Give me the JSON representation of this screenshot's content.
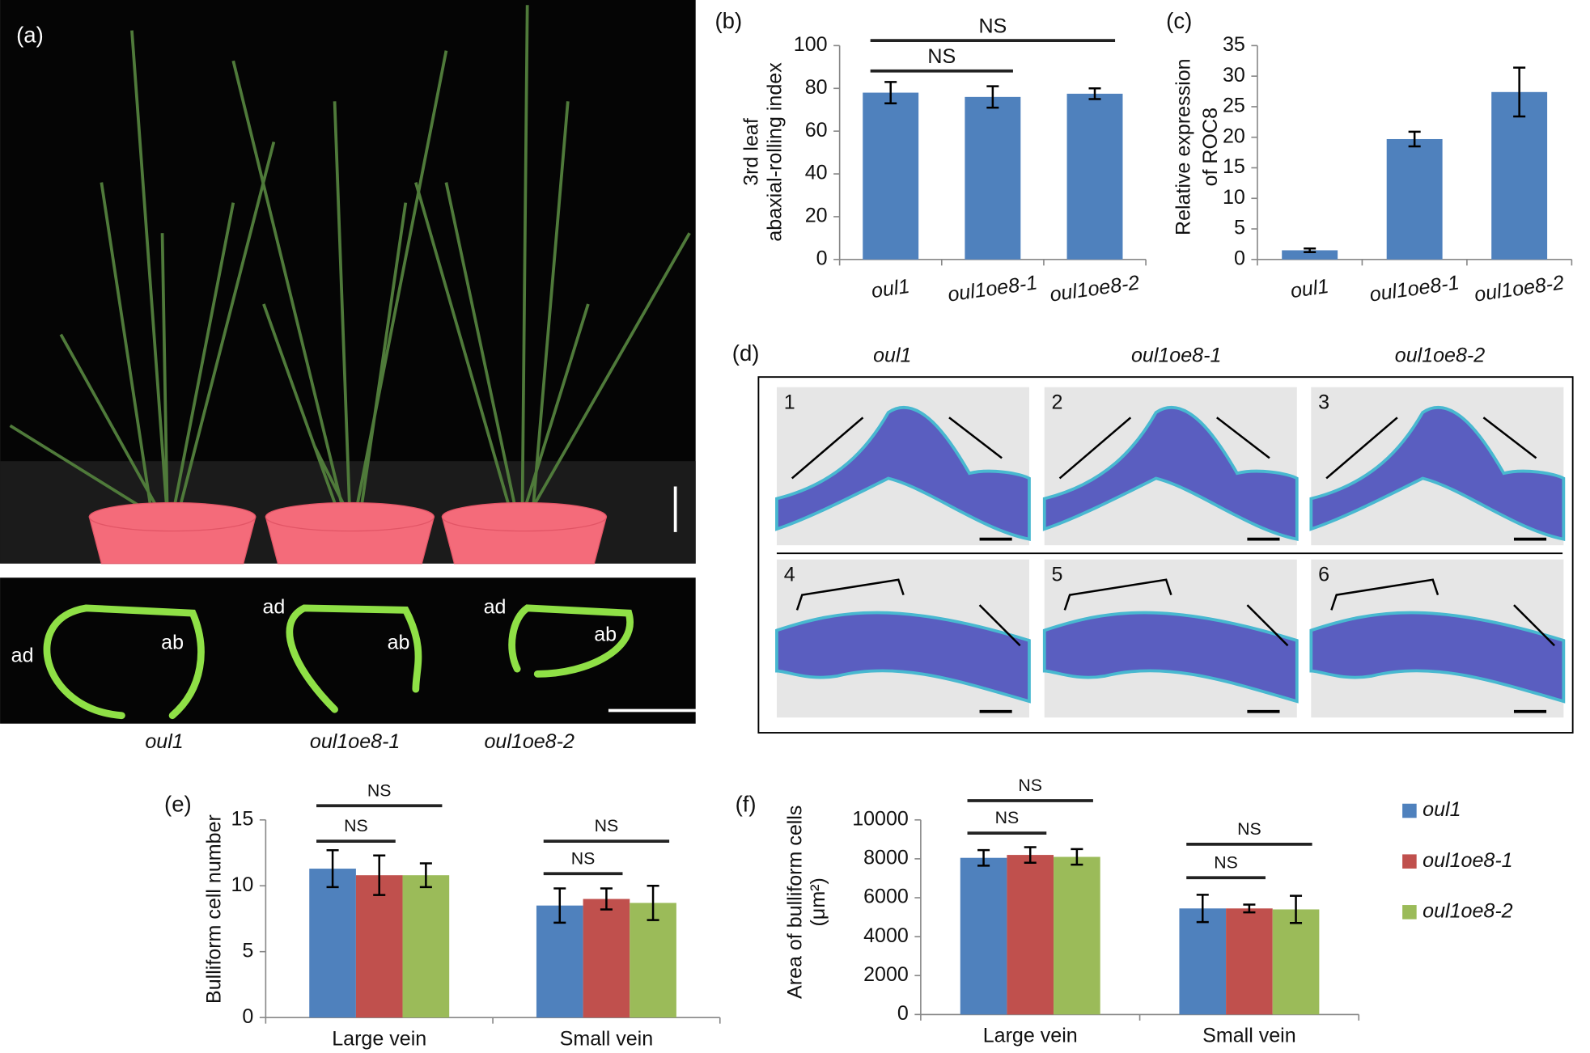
{
  "panel_a": {
    "label": "(a)",
    "section_labels": [
      "ad",
      "ab",
      "ad",
      "ab",
      "ad",
      "ab"
    ],
    "genotypes": [
      "oul1",
      "oul1oe8-1",
      "oul1oe8-2"
    ]
  },
  "panel_d": {
    "label": "(d)",
    "columns": [
      "oul1",
      "oul1oe8-1",
      "oul1oe8-2"
    ],
    "images": [
      "1",
      "2",
      "3",
      "4",
      "5",
      "6"
    ]
  },
  "chart_data": [
    {
      "type": "bar",
      "panel_label": "(b)",
      "y_label": [
        "3rd leaf",
        "abaxial-rolling index"
      ],
      "categories": [
        "oul1",
        "oul1oe8-1",
        "oul1oe8-2"
      ],
      "values": [
        78,
        76,
        77.5
      ],
      "errors": [
        5,
        5,
        2.5
      ],
      "color": "#4f81bd",
      "ylim": [
        0,
        100
      ],
      "yticks": [
        0,
        20,
        40,
        60,
        80,
        100
      ],
      "annotations": [
        "NS",
        "NS"
      ]
    },
    {
      "type": "bar",
      "panel_label": "(c)",
      "y_label": [
        "Relative expression",
        "of ROC8"
      ],
      "categories": [
        "oul1",
        "oul1oe8-1",
        "oul1oe8-2"
      ],
      "values": [
        1.5,
        19.7,
        27.4
      ],
      "errors": [
        0.3,
        1.2,
        4
      ],
      "color": "#4f81bd",
      "ylim": [
        0,
        35
      ],
      "yticks": [
        0,
        5,
        10,
        15,
        20,
        25,
        30,
        35
      ]
    },
    {
      "type": "grouped-bar",
      "panel_label": "(e)",
      "y_label": [
        "Bulliform cell number"
      ],
      "categories": [
        "Large vein",
        "Small vein"
      ],
      "series": [
        {
          "color": "#4f81bd",
          "values": [
            11.3,
            8.5
          ],
          "errors": [
            1.4,
            1.3
          ]
        },
        {
          "color": "#c0504d",
          "values": [
            10.8,
            9.0
          ],
          "errors": [
            1.5,
            0.8
          ]
        },
        {
          "color": "#9bbb59",
          "values": [
            10.8,
            8.7
          ],
          "errors": [
            0.9,
            1.3
          ]
        }
      ],
      "ylim": [
        0,
        15
      ],
      "yticks": [
        0,
        5,
        10,
        15
      ],
      "annotations": [
        "NS",
        "NS",
        "NS",
        "NS"
      ]
    },
    {
      "type": "grouped-bar",
      "panel_label": "(f)",
      "y_label": [
        "Area of bulliform cells",
        "(μm²)"
      ],
      "categories": [
        "Large vein",
        "Small vein"
      ],
      "series": [
        {
          "name": "oul1",
          "color": "#4f81bd",
          "values": [
            8050,
            5450
          ],
          "errors": [
            400,
            700
          ]
        },
        {
          "name": "oul1oe8-1",
          "color": "#c0504d",
          "values": [
            8200,
            5450
          ],
          "errors": [
            400,
            200
          ]
        },
        {
          "name": "oul1oe8-2",
          "color": "#9bbb59",
          "values": [
            8100,
            5400
          ],
          "errors": [
            400,
            700
          ]
        }
      ],
      "ylim": [
        0,
        10000
      ],
      "yticks": [
        0,
        2000,
        4000,
        6000,
        8000,
        10000
      ],
      "annotations": [
        "NS",
        "NS",
        "NS",
        "NS"
      ],
      "legend": "right"
    }
  ]
}
